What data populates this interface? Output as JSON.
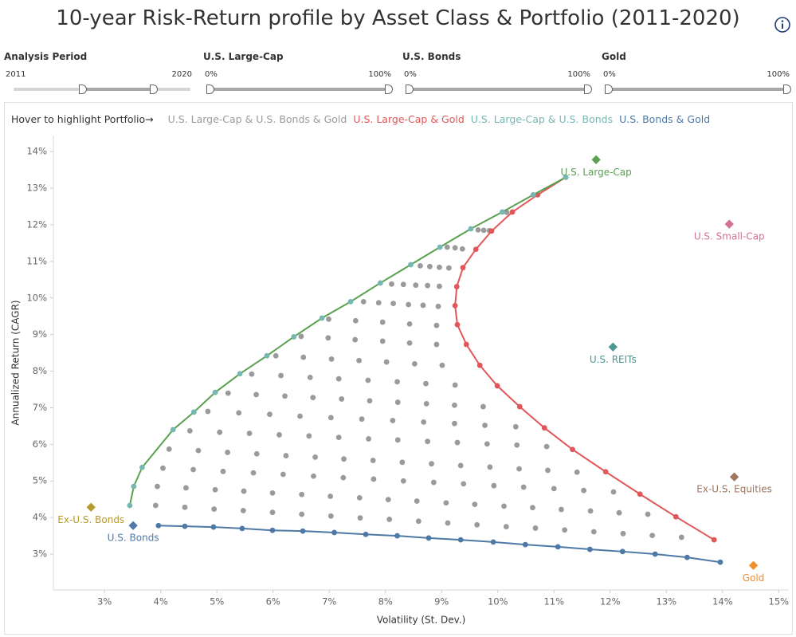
{
  "header": {
    "title": "10-year Risk-Return profile by Asset Class & Portfolio (2011-2020)"
  },
  "filters": [
    {
      "label": "Analysis Period",
      "min_label": "2011",
      "max_label": "2020"
    },
    {
      "label": "U.S. Large-Cap",
      "min_label": "0%",
      "max_label": "100%"
    },
    {
      "label": "U.S. Bonds",
      "min_label": "0%",
      "max_label": "100%"
    },
    {
      "label": "Gold",
      "min_label": "0%",
      "max_label": "100%"
    }
  ],
  "chart_data": {
    "type": "scatter",
    "legend_prompt": "Hover to highlight Portfolio→",
    "xlabel": "Volatility (St. Dev.)",
    "ylabel": "Annualized Return (CAGR)",
    "xlim": [
      2.09,
      15.18
    ],
    "ylim": [
      2.02,
      14.44
    ],
    "xticks": [
      {
        "value": 3,
        "label": "3%"
      },
      {
        "value": 4,
        "label": "4%"
      },
      {
        "value": 5,
        "label": "5%"
      },
      {
        "value": 6,
        "label": "6%"
      },
      {
        "value": 7,
        "label": "7%"
      },
      {
        "value": 8,
        "label": "8%"
      },
      {
        "value": 9,
        "label": "9%"
      },
      {
        "value": 10,
        "label": "10%"
      },
      {
        "value": 11,
        "label": "11%"
      },
      {
        "value": 12,
        "label": "12%"
      },
      {
        "value": 13,
        "label": "13%"
      },
      {
        "value": 14,
        "label": "14%"
      },
      {
        "value": 15,
        "label": "15%"
      }
    ],
    "yticks": [
      {
        "value": 3,
        "label": "3%"
      },
      {
        "value": 4,
        "label": "4%"
      },
      {
        "value": 5,
        "label": "5%"
      },
      {
        "value": 6,
        "label": "6%"
      },
      {
        "value": 7,
        "label": "7%"
      },
      {
        "value": 8,
        "label": "8%"
      },
      {
        "value": 9,
        "label": "9%"
      },
      {
        "value": 10,
        "label": "10%"
      },
      {
        "value": 11,
        "label": "11%"
      },
      {
        "value": 12,
        "label": "12%"
      },
      {
        "value": 13,
        "label": "13%"
      },
      {
        "value": 14,
        "label": "14%"
      }
    ],
    "grid": false,
    "series": [
      {
        "name": "U.S. Large-Cap & U.S. Bonds & Gold",
        "color": "#9a9a9a",
        "mode": "markers",
        "x": [
          3.91,
          4.43,
          4.95,
          5.47,
          5.99,
          6.51,
          7.03,
          7.55,
          8.07,
          8.59,
          9.11,
          9.63,
          10.15,
          10.67,
          11.19,
          11.71,
          12.23,
          12.75,
          13.27,
          3.94,
          4.45,
          4.97,
          5.48,
          5.99,
          6.51,
          7.02,
          7.54,
          8.05,
          8.56,
          9.08,
          9.59,
          10.11,
          10.62,
          11.13,
          11.65,
          12.16,
          12.67,
          4.04,
          4.58,
          5.11,
          5.65,
          6.18,
          6.72,
          7.25,
          7.79,
          8.32,
          8.86,
          9.39,
          9.93,
          10.46,
          11.0,
          11.53,
          12.06,
          4.15,
          4.67,
          5.19,
          5.71,
          6.23,
          6.75,
          7.26,
          7.78,
          8.3,
          8.82,
          9.34,
          9.86,
          10.38,
          10.89,
          11.41,
          4.52,
          5.05,
          5.58,
          6.11,
          6.64,
          7.17,
          7.7,
          8.22,
          8.75,
          9.28,
          9.81,
          10.34,
          10.87,
          4.84,
          5.39,
          5.94,
          6.48,
          7.03,
          7.58,
          8.13,
          8.68,
          9.23,
          9.77,
          10.32,
          5.2,
          5.7,
          6.21,
          6.71,
          7.22,
          7.72,
          8.22,
          8.73,
          9.23,
          9.74,
          5.62,
          6.14,
          6.66,
          7.17,
          7.69,
          8.21,
          8.72,
          9.24,
          6.05,
          6.54,
          7.04,
          7.53,
          8.02,
          8.52,
          9.01,
          6.5,
          6.98,
          7.46,
          7.95,
          8.43,
          8.91,
          6.99,
          7.47,
          7.95,
          8.43,
          8.91,
          7.61,
          7.88,
          8.14,
          8.41,
          8.67,
          8.94,
          8.11,
          8.32,
          8.54,
          8.75,
          8.96,
          8.62,
          8.79,
          8.96,
          9.13,
          9.1,
          9.24,
          9.37,
          9.65,
          9.75,
          9.85,
          10.16
        ],
        "y": [
          4.33,
          4.28,
          4.23,
          4.19,
          4.14,
          4.09,
          4.04,
          3.99,
          3.95,
          3.9,
          3.85,
          3.8,
          3.75,
          3.71,
          3.66,
          3.61,
          3.56,
          3.51,
          3.46,
          4.85,
          4.81,
          4.76,
          4.72,
          4.67,
          4.63,
          4.58,
          4.54,
          4.49,
          4.45,
          4.4,
          4.36,
          4.31,
          4.27,
          4.22,
          4.18,
          4.13,
          4.09,
          5.35,
          5.31,
          5.26,
          5.22,
          5.18,
          5.13,
          5.09,
          5.05,
          5.0,
          4.96,
          4.92,
          4.87,
          4.83,
          4.79,
          4.74,
          4.7,
          5.87,
          5.83,
          5.78,
          5.74,
          5.69,
          5.65,
          5.6,
          5.56,
          5.51,
          5.47,
          5.42,
          5.38,
          5.33,
          5.29,
          5.24,
          6.37,
          6.33,
          6.3,
          6.26,
          6.23,
          6.19,
          6.15,
          6.12,
          6.08,
          6.05,
          6.01,
          5.98,
          5.94,
          6.9,
          6.86,
          6.82,
          6.77,
          6.73,
          6.69,
          6.65,
          6.61,
          6.57,
          6.52,
          6.48,
          7.4,
          7.36,
          7.32,
          7.28,
          7.24,
          7.19,
          7.15,
          7.11,
          7.07,
          7.03,
          7.92,
          7.88,
          7.83,
          7.79,
          7.75,
          7.71,
          7.66,
          7.62,
          8.42,
          8.38,
          8.33,
          8.29,
          8.25,
          8.2,
          8.16,
          8.95,
          8.91,
          8.86,
          8.82,
          8.77,
          8.73,
          9.42,
          9.38,
          9.34,
          9.29,
          9.25,
          9.9,
          9.87,
          9.85,
          9.82,
          9.8,
          9.77,
          10.38,
          10.37,
          10.35,
          10.34,
          10.32,
          10.88,
          10.86,
          10.84,
          10.82,
          11.39,
          11.37,
          11.34,
          11.86,
          11.85,
          11.84,
          12.34
        ]
      },
      {
        "name": "U.S. Large-Cap & Gold",
        "color": "#e15759",
        "line_color": "#e15759",
        "mode": "lines+markers",
        "x": [
          11.21,
          10.71,
          10.26,
          9.89,
          9.61,
          9.38,
          9.27,
          9.24,
          9.28,
          9.44,
          9.68,
          9.99,
          10.39,
          10.83,
          11.33,
          11.92,
          12.53,
          13.17,
          13.85
        ],
        "y": [
          13.3,
          12.82,
          12.35,
          11.83,
          11.33,
          10.83,
          10.31,
          9.79,
          9.27,
          8.73,
          8.16,
          7.6,
          7.03,
          6.45,
          5.86,
          5.25,
          4.64,
          4.02,
          3.39
        ]
      },
      {
        "name": "U.S. Large-Cap & U.S. Bonds",
        "color": "#76b7b2",
        "line_color": "#59a14f",
        "mode": "lines+markers",
        "x": [
          3.45,
          3.52,
          3.67,
          4.22,
          4.59,
          4.97,
          5.41,
          5.89,
          6.37,
          6.87,
          7.38,
          7.91,
          8.45,
          8.97,
          9.52,
          10.08,
          10.63,
          11.21
        ],
        "y": [
          4.33,
          4.85,
          5.37,
          6.4,
          6.88,
          7.42,
          7.93,
          8.42,
          8.94,
          9.45,
          9.9,
          10.41,
          10.91,
          11.39,
          11.89,
          12.35,
          12.82,
          13.3
        ]
      },
      {
        "name": "U.S. Bonds & Gold",
        "color": "#4e79a7",
        "line_color": "#4e79a7",
        "mode": "lines+markers",
        "x": [
          3.96,
          4.43,
          4.94,
          5.45,
          5.99,
          6.53,
          7.09,
          7.65,
          8.21,
          8.77,
          9.34,
          9.92,
          10.49,
          11.07,
          11.64,
          12.22,
          12.8,
          13.37,
          13.96
        ],
        "y": [
          3.78,
          3.76,
          3.74,
          3.7,
          3.65,
          3.63,
          3.59,
          3.54,
          3.5,
          3.44,
          3.39,
          3.33,
          3.26,
          3.2,
          3.13,
          3.07,
          3.0,
          2.91,
          2.78
        ]
      }
    ],
    "points": [
      {
        "name": "U.S. Large-Cap",
        "x": 11.75,
        "y": 13.78,
        "color": "#59a14f"
      },
      {
        "name": "U.S. Small-Cap",
        "x": 14.12,
        "y": 12.02,
        "color": "#d37295"
      },
      {
        "name": "U.S. REITs",
        "x": 12.05,
        "y": 8.66,
        "color": "#499894"
      },
      {
        "name": "Ex-U.S. Equities",
        "x": 14.21,
        "y": 5.11,
        "color": "#9d7660"
      },
      {
        "name": "Gold",
        "x": 14.55,
        "y": 2.69,
        "color": "#f28e2b"
      },
      {
        "name": "U.S. Bonds",
        "x": 3.51,
        "y": 3.78,
        "color": "#4e79a7"
      },
      {
        "name": "Ex-U.S. Bonds",
        "x": 2.76,
        "y": 4.28,
        "color": "#b6992d"
      }
    ]
  }
}
